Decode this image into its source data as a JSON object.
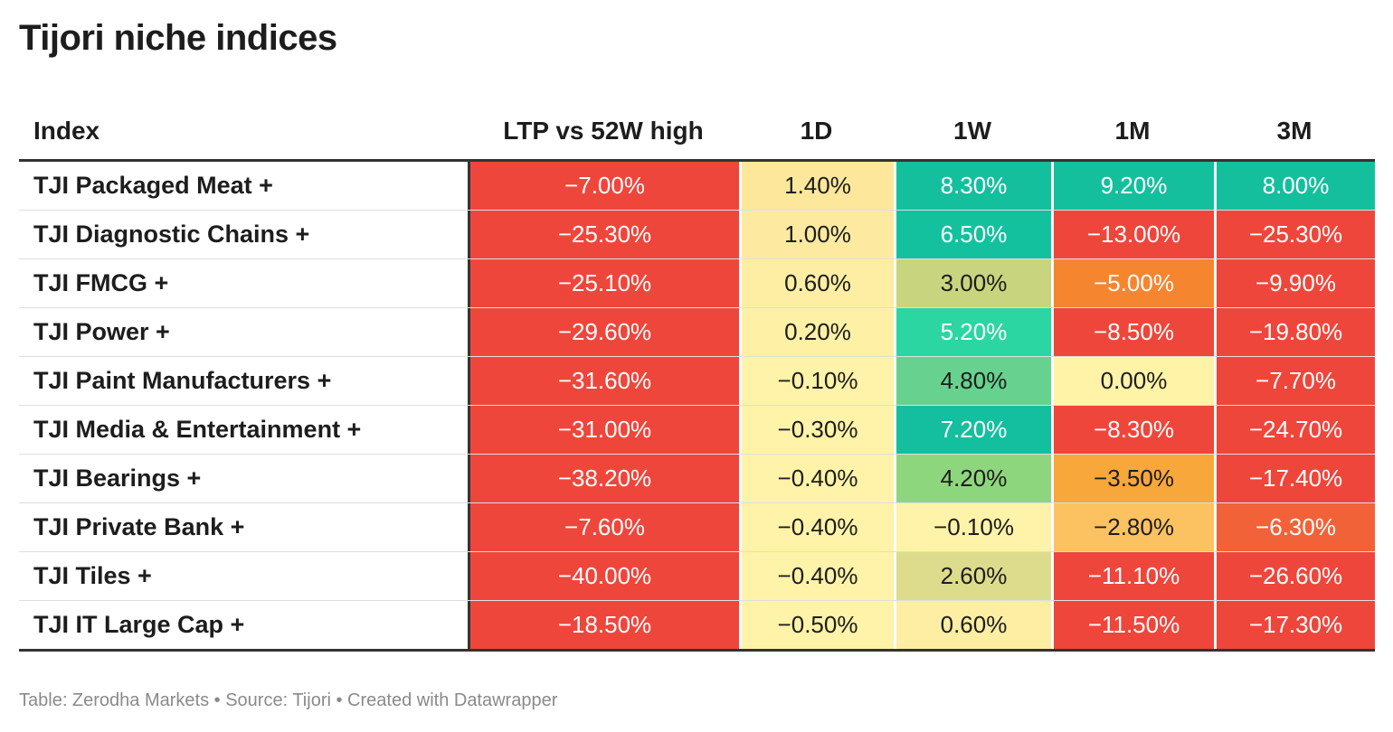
{
  "title": "Tijori niche indices",
  "footer": "Table: Zerodha Markets • Source: Tijori • Created with Datawrapper",
  "chart_data": {
    "type": "table",
    "title": "Tijori niche indices",
    "columns": [
      "Index",
      "LTP vs 52W high",
      "1D",
      "1W",
      "1M",
      "3M"
    ],
    "rows": [
      {
        "index": "TJI Packaged Meat +",
        "values": [
          "−7.00%",
          "1.40%",
          "8.30%",
          "9.20%",
          "8.00%"
        ],
        "colors": [
          "#ef463b",
          "#fde79b",
          "#14bf9e",
          "#14bf9e",
          "#14bf9e"
        ]
      },
      {
        "index": "TJI Diagnostic Chains +",
        "values": [
          "−25.30%",
          "1.00%",
          "6.50%",
          "−13.00%",
          "−25.30%"
        ],
        "colors": [
          "#ef463b",
          "#fdeaa0",
          "#13c19e",
          "#ef463b",
          "#ef463b"
        ]
      },
      {
        "index": "TJI FMCG +",
        "values": [
          "−25.10%",
          "0.60%",
          "3.00%",
          "−5.00%",
          "−9.90%"
        ],
        "colors": [
          "#ef463b",
          "#fdeea3",
          "#c9d57e",
          "#f5862f",
          "#ef463b"
        ]
      },
      {
        "index": "TJI Power +",
        "values": [
          "−29.60%",
          "0.20%",
          "5.20%",
          "−8.50%",
          "−19.80%"
        ],
        "colors": [
          "#ef463b",
          "#fef1a6",
          "#2bd6a3",
          "#ef463b",
          "#ef463b"
        ]
      },
      {
        "index": "TJI Paint Manufacturers +",
        "values": [
          "−31.60%",
          "−0.10%",
          "4.80%",
          "0.00%",
          "−7.70%"
        ],
        "colors": [
          "#ef463b",
          "#fef3a8",
          "#67d28f",
          "#fff3a8",
          "#ef463b"
        ]
      },
      {
        "index": "TJI Media & Entertainment +",
        "values": [
          "−31.00%",
          "−0.30%",
          "7.20%",
          "−8.30%",
          "−24.70%"
        ],
        "colors": [
          "#ef463b",
          "#fef3a8",
          "#13bf9e",
          "#ef463b",
          "#ef463b"
        ]
      },
      {
        "index": "TJI Bearings +",
        "values": [
          "−38.20%",
          "−0.40%",
          "4.20%",
          "−3.50%",
          "−17.40%"
        ],
        "colors": [
          "#ef463b",
          "#fef3a8",
          "#8ed67d",
          "#f8a73a",
          "#ef463b"
        ]
      },
      {
        "index": "TJI Private Bank +",
        "values": [
          "−7.60%",
          "−0.40%",
          "−0.10%",
          "−2.80%",
          "−6.30%"
        ],
        "colors": [
          "#ef463b",
          "#fef3a8",
          "#fef3a8",
          "#fcc261",
          "#f26238"
        ]
      },
      {
        "index": "TJI Tiles +",
        "values": [
          "−40.00%",
          "−0.40%",
          "2.60%",
          "−11.10%",
          "−26.60%"
        ],
        "colors": [
          "#ef463b",
          "#fef3a8",
          "#dcdc8c",
          "#ef463b",
          "#ef463b"
        ]
      },
      {
        "index": "TJI IT Large Cap +",
        "values": [
          "−18.50%",
          "−0.50%",
          "0.60%",
          "−11.50%",
          "−17.30%"
        ],
        "colors": [
          "#ef463b",
          "#fef3a8",
          "#fdeea3",
          "#ef463b",
          "#ef463b"
        ]
      }
    ]
  }
}
